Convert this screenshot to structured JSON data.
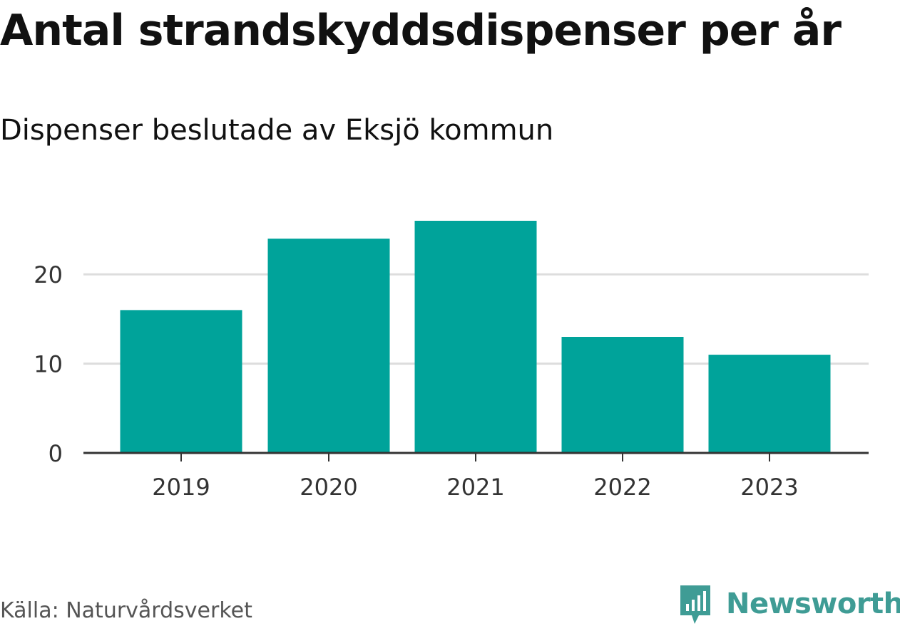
{
  "header": {
    "title": "Antal strandskyddsdispenser per år",
    "subtitle": "Dispenser beslutade av Eksjö kommun"
  },
  "footer": {
    "source": "Källa: Naturvårdsverket",
    "brand": "Newsworthy"
  },
  "colors": {
    "bar": "#00a39a",
    "grid": "#dddddd",
    "axis": "#333333",
    "brand": "#3f9c95"
  },
  "chart_data": {
    "type": "bar",
    "categories": [
      "2019",
      "2020",
      "2021",
      "2022",
      "2023"
    ],
    "values": [
      16,
      24,
      26,
      13,
      11
    ],
    "title": "Antal strandskyddsdispenser per år",
    "subtitle": "Dispenser beslutade av Eksjö kommun",
    "xlabel": "",
    "ylabel": "",
    "ylim": [
      0,
      28
    ],
    "yticks": [
      0,
      10,
      20
    ],
    "grid": true,
    "legend": "none"
  }
}
